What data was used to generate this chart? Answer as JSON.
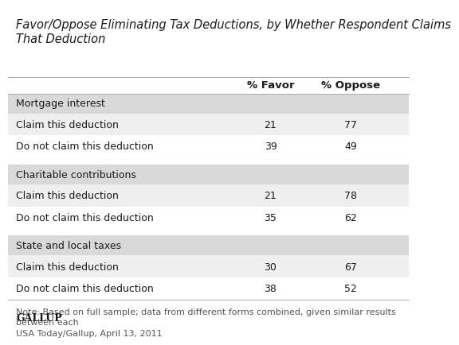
{
  "title": "Favor/Oppose Eliminating Tax Deductions, by Whether Respondent Claims\nThat Deduction",
  "col_headers": [
    "% Favor",
    "% Oppose"
  ],
  "sections": [
    {
      "header": "Mortgage interest",
      "rows": [
        {
          "label": "Claim this deduction",
          "favor": 21,
          "oppose": 77
        },
        {
          "label": "Do not claim this deduction",
          "favor": 39,
          "oppose": 49
        }
      ]
    },
    {
      "header": "Charitable contributions",
      "rows": [
        {
          "label": "Claim this deduction",
          "favor": 21,
          "oppose": 78
        },
        {
          "label": "Do not claim this deduction",
          "favor": 35,
          "oppose": 62
        }
      ]
    },
    {
      "header": "State and local taxes",
      "rows": [
        {
          "label": "Claim this deduction",
          "favor": 30,
          "oppose": 67
        },
        {
          "label": "Do not claim this deduction",
          "favor": 38,
          "oppose": 52
        }
      ]
    }
  ],
  "note": "Note: Based on full sample; data from different forms combined, given similar results\nbetween each\nUSA Today/Gallup, April 13, 2011",
  "brand": "GALLUP",
  "bg_color": "#ffffff",
  "row_odd_bg": "#ffffff",
  "row_even_bg": "#efefef",
  "section_header_bg": "#d9d9d9",
  "text_color": "#1a1a1a",
  "title_color": "#1a1a1a",
  "note_color": "#555555",
  "brand_color": "#1a1a1a",
  "title_fontsize": 10.5,
  "header_fontsize": 9.5,
  "row_fontsize": 9,
  "note_fontsize": 8,
  "brand_fontsize": 9
}
